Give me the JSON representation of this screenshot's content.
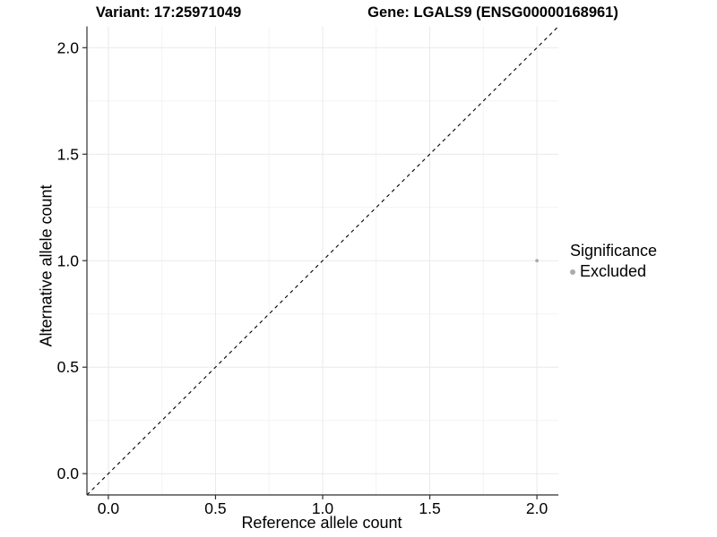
{
  "header": {
    "variant_title": "Variant: 17:25971049",
    "gene_title": "Gene: LGALS9 (ENSG00000168961)"
  },
  "chart_data": {
    "type": "scatter",
    "xlabel": "Reference allele count",
    "ylabel": "Alternative allele count",
    "xlim": [
      -0.1,
      2.1
    ],
    "ylim": [
      -0.1,
      2.1
    ],
    "xticks": [
      0.0,
      0.5,
      1.0,
      1.5,
      2.0
    ],
    "yticks": [
      0.0,
      0.5,
      1.0,
      1.5,
      2.0
    ],
    "minor_step": 0.25,
    "grid": true,
    "identity_line": {
      "type": "abline",
      "slope": 1,
      "intercept": 0,
      "style": "dashed",
      "color": "#000000"
    },
    "points": [
      {
        "x": 2.0,
        "y": 1.0,
        "series": "Excluded",
        "color": "#aaaaaa"
      }
    ],
    "legend": {
      "title": "Significance",
      "position": "right",
      "items": [
        {
          "label": "Excluded",
          "color": "#aaaaaa"
        }
      ]
    },
    "colors": {
      "grid_major": "#e9e9e9",
      "grid_minor": "#f3f3f3",
      "axis_line": "#2f2f2f"
    }
  }
}
